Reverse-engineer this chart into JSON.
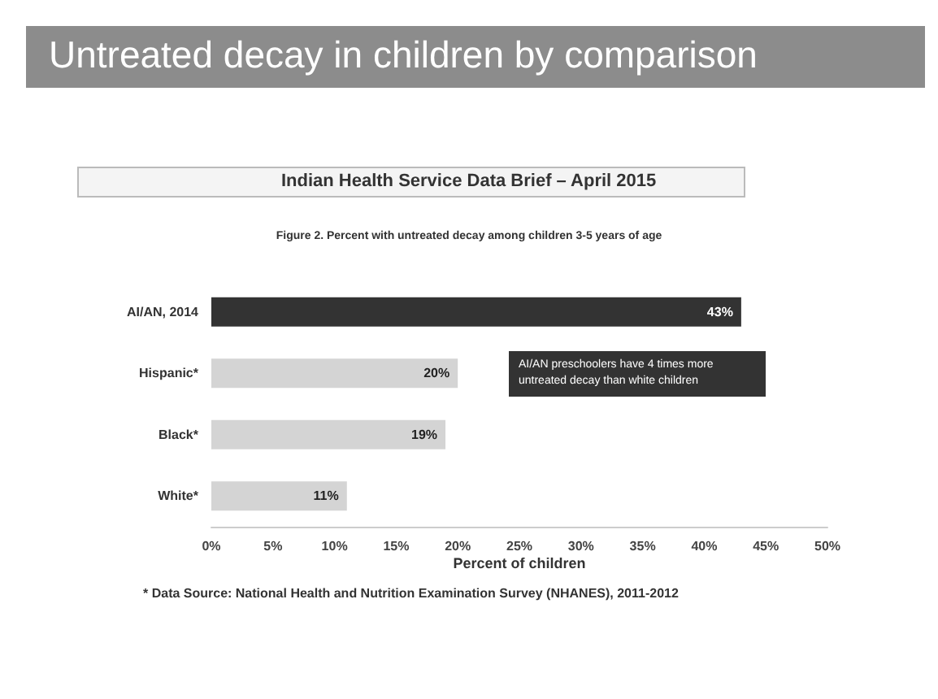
{
  "chart_data": {
    "type": "bar",
    "orientation": "horizontal",
    "title": "Untreated decay in children by comparison",
    "subtitle": "Indian Health Service Data Brief – April 2015",
    "categories": [
      "AI/AN, 2014",
      "Hispanic*",
      "Black*",
      "White*"
    ],
    "values": [
      43,
      20,
      19,
      11
    ],
    "colors": [
      "#333333",
      "#d4d4d4",
      "#d4d4d4",
      "#d4d4d4"
    ],
    "value_labels": [
      "43%",
      "20%",
      "19%",
      "11%"
    ],
    "xlabel": "Percent of children",
    "xlim": [
      0,
      50
    ],
    "xticks": [
      {
        "value": 0,
        "label": "0%"
      },
      {
        "value": 5,
        "label": "5%"
      },
      {
        "value": 10,
        "label": "10%"
      },
      {
        "value": 15,
        "label": "15%"
      },
      {
        "value": 20,
        "label": "20%"
      },
      {
        "value": 25,
        "label": "25%"
      },
      {
        "value": 30,
        "label": "30%"
      },
      {
        "value": 35,
        "label": "35%"
      },
      {
        "value": 40,
        "label": "40%"
      },
      {
        "value": 45,
        "label": "45%"
      },
      {
        "value": 50,
        "label": "50%"
      }
    ],
    "grid": false,
    "annotations": [
      "Figure 2. Percent with untreated decay among children 3-5 years of age",
      "AI/AN preschoolers have 4 times more untreated decay than white children",
      "* Data Source: National Health and Nutrition Examination Survey (NHANES), 2011-2012"
    ]
  }
}
